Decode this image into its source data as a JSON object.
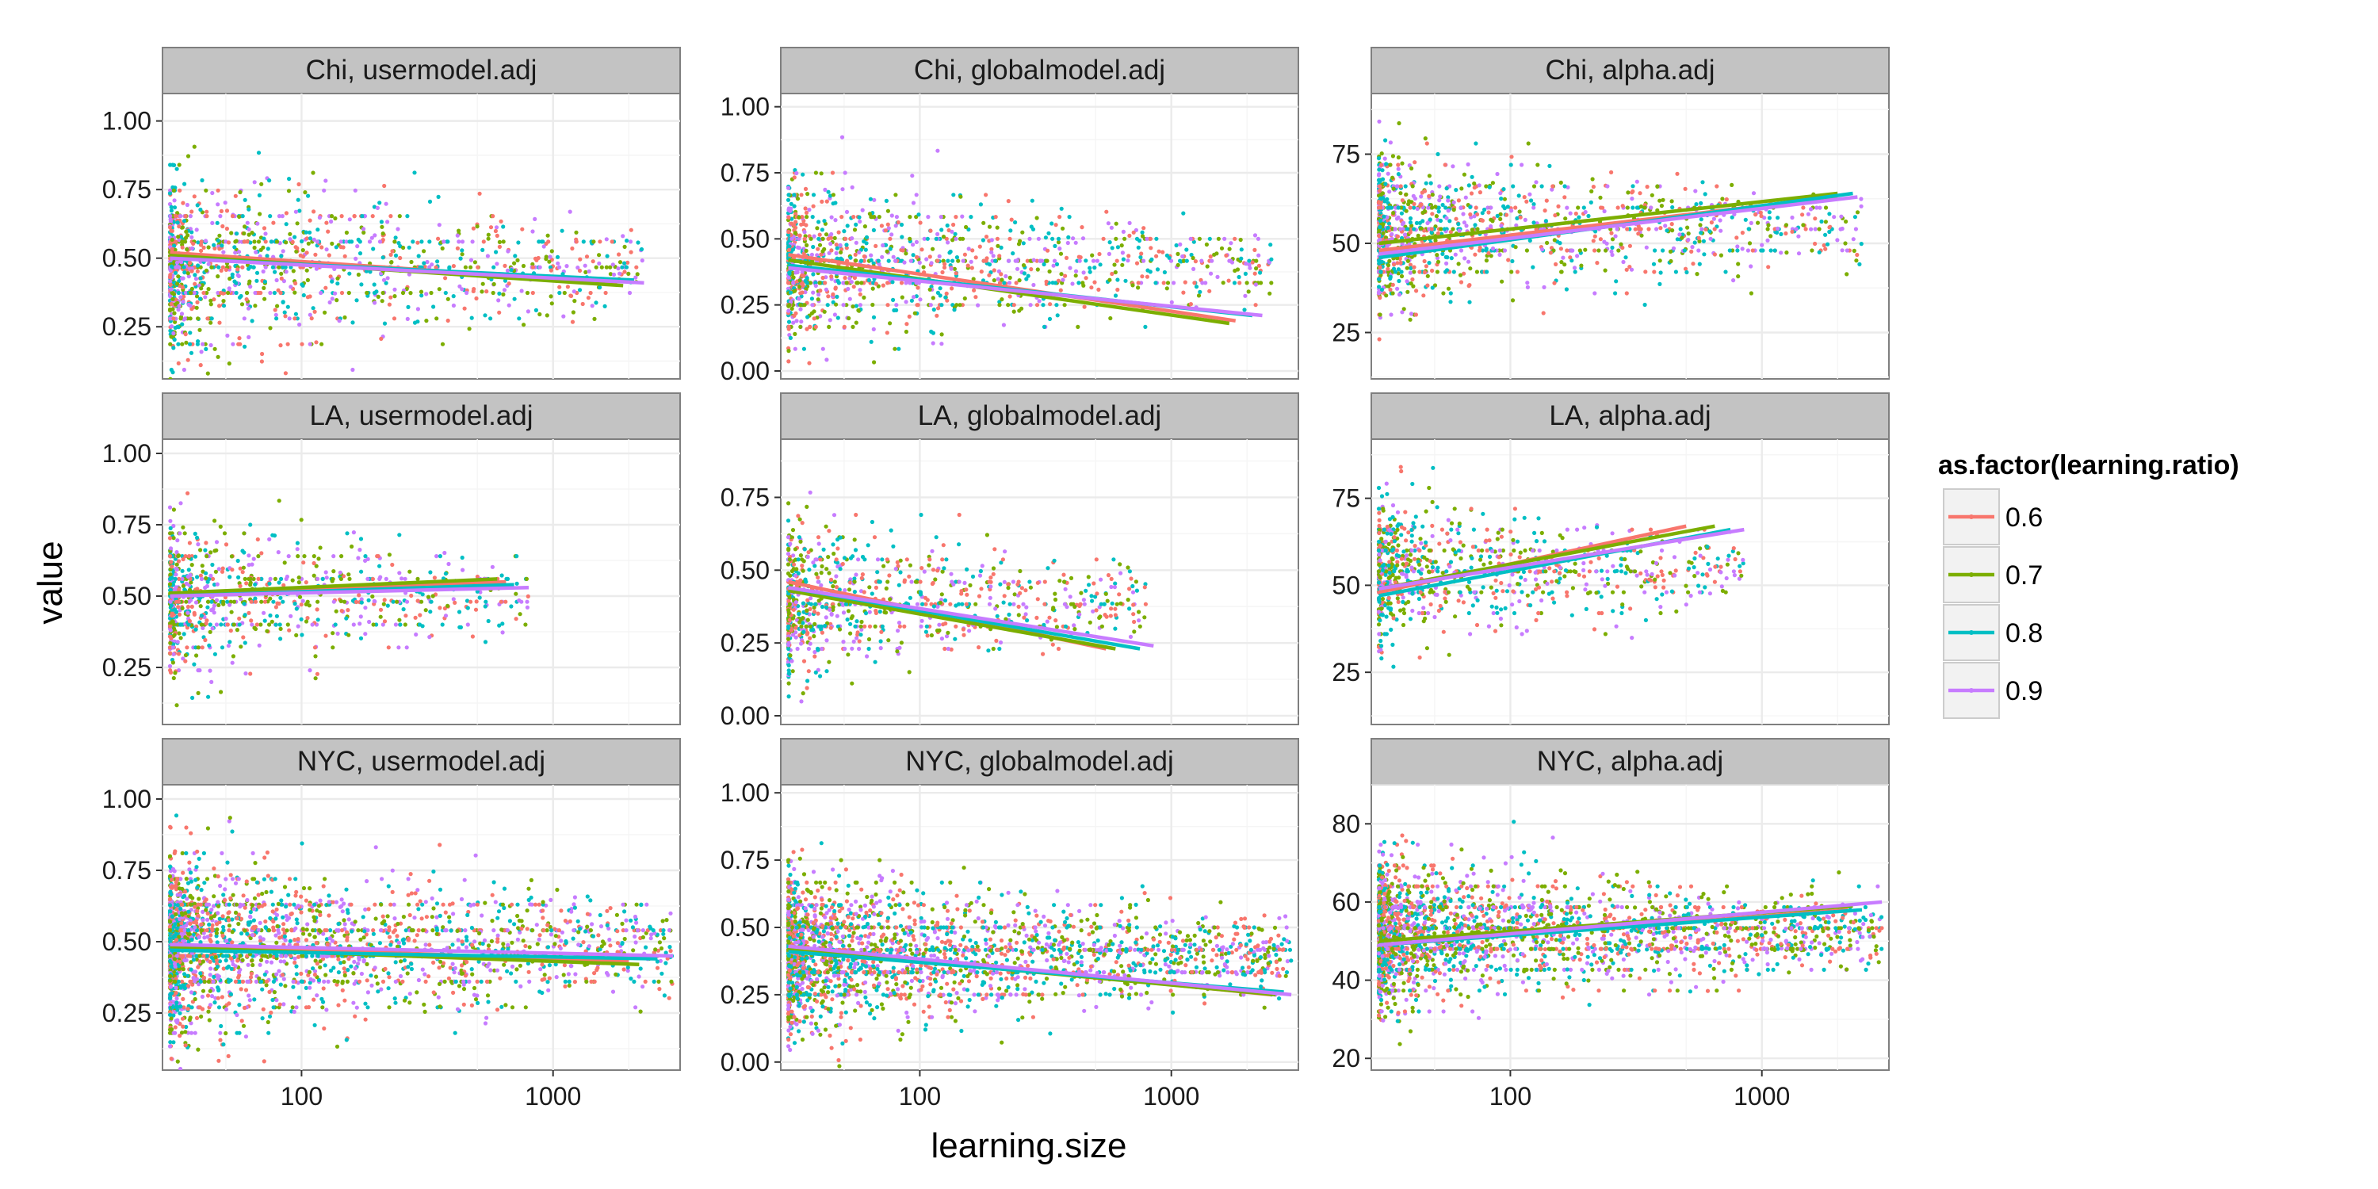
{
  "chart_data": {
    "type": "scatter",
    "xlabel": "learning.size",
    "ylabel": "value",
    "x_scale": "log10",
    "xlim": [
      28,
      3200
    ],
    "x_ticks": [
      100,
      1000
    ],
    "x_tick_labels": [
      "100",
      "1000"
    ],
    "legend": {
      "title": "as.factor(learning.ratio)",
      "placement": "right",
      "entries": [
        {
          "label": "0.6",
          "color": "#F8766D"
        },
        {
          "label": "0.7",
          "color": "#7CAE00"
        },
        {
          "label": "0.8",
          "color": "#00BFC4"
        },
        {
          "label": "0.9",
          "color": "#C77CFF"
        }
      ]
    },
    "grid": true,
    "panels": [
      {
        "label": "Chi, usermodel.adj",
        "row": 0,
        "col": 0,
        "ylim": [
          0.06,
          1.1
        ],
        "y_ticks": [
          0.25,
          0.5,
          0.75,
          1.0
        ],
        "y_tick_labels": [
          "0.25",
          "0.50",
          "0.75",
          "1.00"
        ],
        "points": {
          "count": 1300,
          "x_min": 30,
          "x_max": 2300,
          "y_center": 0.47,
          "y_spread": 0.28
        },
        "trend_lines": [
          {
            "ratio": "0.6",
            "x": [
              30,
              1800
            ],
            "y": [
              0.52,
              0.41
            ]
          },
          {
            "ratio": "0.7",
            "x": [
              30,
              1900
            ],
            "y": [
              0.51,
              0.4
            ]
          },
          {
            "ratio": "0.8",
            "x": [
              30,
              2100
            ],
            "y": [
              0.5,
              0.42
            ]
          },
          {
            "ratio": "0.9",
            "x": [
              30,
              2300
            ],
            "y": [
              0.5,
              0.41
            ]
          }
        ]
      },
      {
        "label": "Chi, globalmodel.adj",
        "row": 0,
        "col": 1,
        "ylim": [
          -0.03,
          1.05
        ],
        "y_ticks": [
          0,
          0.25,
          0.5,
          0.75,
          1.0
        ],
        "y_tick_labels": [
          "0.00",
          "0.25",
          "0.50",
          "0.75",
          "1.00"
        ],
        "points": {
          "count": 1300,
          "x_min": 30,
          "x_max": 2500,
          "y_center": 0.4,
          "y_spread": 0.25
        },
        "trend_lines": [
          {
            "ratio": "0.6",
            "x": [
              30,
              1800
            ],
            "y": [
              0.44,
              0.19
            ]
          },
          {
            "ratio": "0.7",
            "x": [
              30,
              1700
            ],
            "y": [
              0.42,
              0.18
            ]
          },
          {
            "ratio": "0.8",
            "x": [
              30,
              2100
            ],
            "y": [
              0.4,
              0.21
            ]
          },
          {
            "ratio": "0.9",
            "x": [
              30,
              2300
            ],
            "y": [
              0.39,
              0.21
            ]
          }
        ]
      },
      {
        "label": "Chi, alpha.adj",
        "row": 0,
        "col": 2,
        "ylim": [
          12,
          92
        ],
        "y_ticks": [
          25,
          50,
          75
        ],
        "y_tick_labels": [
          "25",
          "50",
          "75"
        ],
        "points": {
          "count": 1300,
          "x_min": 30,
          "x_max": 2500,
          "y_center": 54,
          "y_spread": 18
        },
        "trend_lines": [
          {
            "ratio": "0.6",
            "x": [
              30,
              2000
            ],
            "y": [
              48,
              63
            ]
          },
          {
            "ratio": "0.7",
            "x": [
              30,
              2000
            ],
            "y": [
              50,
              64
            ]
          },
          {
            "ratio": "0.8",
            "x": [
              30,
              2300
            ],
            "y": [
              46,
              64
            ]
          },
          {
            "ratio": "0.9",
            "x": [
              30,
              2400
            ],
            "y": [
              47,
              63
            ]
          }
        ]
      },
      {
        "label": "LA, usermodel.adj",
        "row": 1,
        "col": 0,
        "ylim": [
          0.05,
          1.05
        ],
        "y_ticks": [
          0.25,
          0.5,
          0.75,
          1.0
        ],
        "y_tick_labels": [
          "0.25",
          "0.50",
          "0.75",
          "1.00"
        ],
        "points": {
          "count": 900,
          "x_min": 30,
          "x_max": 800,
          "y_center": 0.5,
          "y_spread": 0.24
        },
        "trend_lines": [
          {
            "ratio": "0.6",
            "x": [
              30,
              650
            ],
            "y": [
              0.5,
              0.55
            ]
          },
          {
            "ratio": "0.7",
            "x": [
              30,
              600
            ],
            "y": [
              0.51,
              0.56
            ]
          },
          {
            "ratio": "0.8",
            "x": [
              30,
              700
            ],
            "y": [
              0.5,
              0.54
            ]
          },
          {
            "ratio": "0.9",
            "x": [
              30,
              800
            ],
            "y": [
              0.5,
              0.53
            ]
          }
        ]
      },
      {
        "label": "LA, globalmodel.adj",
        "row": 1,
        "col": 1,
        "ylim": [
          -0.03,
          0.95
        ],
        "y_ticks": [
          0,
          0.25,
          0.5,
          0.75
        ],
        "y_tick_labels": [
          "0.00",
          "0.25",
          "0.50",
          "0.75"
        ],
        "points": {
          "count": 900,
          "x_min": 30,
          "x_max": 800,
          "y_center": 0.4,
          "y_spread": 0.23
        },
        "trend_lines": [
          {
            "ratio": "0.6",
            "x": [
              30,
              550
            ],
            "y": [
              0.46,
              0.23
            ]
          },
          {
            "ratio": "0.7",
            "x": [
              30,
              600
            ],
            "y": [
              0.43,
              0.23
            ]
          },
          {
            "ratio": "0.8",
            "x": [
              30,
              750
            ],
            "y": [
              0.44,
              0.23
            ]
          },
          {
            "ratio": "0.9",
            "x": [
              30,
              850
            ],
            "y": [
              0.44,
              0.24
            ]
          }
        ]
      },
      {
        "label": "LA, alpha.adj",
        "row": 1,
        "col": 2,
        "ylim": [
          10,
          92
        ],
        "y_ticks": [
          25,
          50,
          75
        ],
        "y_tick_labels": [
          "25",
          "50",
          "75"
        ],
        "points": {
          "count": 900,
          "x_min": 30,
          "x_max": 850,
          "y_center": 54,
          "y_spread": 18
        },
        "trend_lines": [
          {
            "ratio": "0.6",
            "x": [
              30,
              500
            ],
            "y": [
              48,
              67
            ]
          },
          {
            "ratio": "0.7",
            "x": [
              30,
              650
            ],
            "y": [
              49,
              67
            ]
          },
          {
            "ratio": "0.8",
            "x": [
              30,
              750
            ],
            "y": [
              47,
              66
            ]
          },
          {
            "ratio": "0.9",
            "x": [
              30,
              850
            ],
            "y": [
              49,
              66
            ]
          }
        ]
      },
      {
        "label": "NYC, usermodel.adj",
        "row": 2,
        "col": 0,
        "ylim": [
          0.05,
          1.05
        ],
        "y_ticks": [
          0.25,
          0.5,
          0.75,
          1.0
        ],
        "y_tick_labels": [
          "0.25",
          "0.50",
          "0.75",
          "1.00"
        ],
        "points": {
          "count": 2400,
          "x_min": 30,
          "x_max": 3000,
          "y_center": 0.48,
          "y_spread": 0.27
        },
        "trend_lines": [
          {
            "ratio": "0.6",
            "x": [
              30,
              2000
            ],
            "y": [
              0.49,
              0.43
            ]
          },
          {
            "ratio": "0.7",
            "x": [
              30,
              2200
            ],
            "y": [
              0.48,
              0.42
            ]
          },
          {
            "ratio": "0.8",
            "x": [
              30,
              2600
            ],
            "y": [
              0.47,
              0.44
            ]
          },
          {
            "ratio": "0.9",
            "x": [
              30,
              3000
            ],
            "y": [
              0.49,
              0.45
            ]
          }
        ]
      },
      {
        "label": "NYC, globalmodel.adj",
        "row": 2,
        "col": 1,
        "ylim": [
          -0.03,
          1.03
        ],
        "y_ticks": [
          0,
          0.25,
          0.5,
          0.75,
          1.0
        ],
        "y_tick_labels": [
          "0.00",
          "0.25",
          "0.50",
          "0.75",
          "1.00"
        ],
        "points": {
          "count": 2400,
          "x_min": 30,
          "x_max": 3000,
          "y_center": 0.4,
          "y_spread": 0.25
        },
        "trend_lines": [
          {
            "ratio": "0.6",
            "x": [
              30,
              2500
            ],
            "y": [
              0.43,
              0.25
            ]
          },
          {
            "ratio": "0.7",
            "x": [
              30,
              2600
            ],
            "y": [
              0.42,
              0.25
            ]
          },
          {
            "ratio": "0.8",
            "x": [
              30,
              2800
            ],
            "y": [
              0.41,
              0.26
            ]
          },
          {
            "ratio": "0.9",
            "x": [
              30,
              3000
            ],
            "y": [
              0.43,
              0.25
            ]
          }
        ]
      },
      {
        "label": "NYC, alpha.adj",
        "row": 2,
        "col": 2,
        "ylim": [
          17,
          90
        ],
        "y_ticks": [
          20,
          40,
          60,
          80
        ],
        "y_tick_labels": [
          "20",
          "40",
          "60",
          "80"
        ],
        "points": {
          "count": 2400,
          "x_min": 30,
          "x_max": 3000,
          "y_center": 52,
          "y_spread": 16
        },
        "trend_lines": [
          {
            "ratio": "0.6",
            "x": [
              30,
              2200
            ],
            "y": [
              49,
              58
            ]
          },
          {
            "ratio": "0.7",
            "x": [
              30,
              2300
            ],
            "y": [
              50,
              59
            ]
          },
          {
            "ratio": "0.8",
            "x": [
              30,
              2500
            ],
            "y": [
              49,
              58
            ]
          },
          {
            "ratio": "0.9",
            "x": [
              30,
              3000
            ],
            "y": [
              49,
              60
            ]
          }
        ]
      }
    ]
  }
}
